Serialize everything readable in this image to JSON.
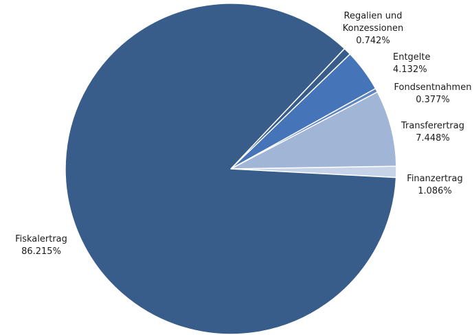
{
  "chart_data": {
    "type": "pie",
    "title": "",
    "slices": [
      {
        "label": "Fiskalertrag",
        "value_text": "86.215%",
        "value": 86.215,
        "color": "#385D8A"
      },
      {
        "label": "Regalien und Konzessionen",
        "label_lines": [
          "Regalien und",
          "Konzessionen"
        ],
        "value_text": "0.742%",
        "value": 0.742,
        "color": "#385D8A"
      },
      {
        "label": "Entgelte",
        "value_text": "4.132%",
        "value": 4.132,
        "color": "#4674B8"
      },
      {
        "label": "Fondsentnahmen",
        "value_text": "0.377%",
        "value": 0.377,
        "color": "#5F86C1"
      },
      {
        "label": "Transferertrag",
        "value_text": "7.448%",
        "value": 7.448,
        "color": "#A1B5D7"
      },
      {
        "label": "Finanzertrag",
        "value_text": "1.086%",
        "value": 1.086,
        "color": "#C6D3E8"
      }
    ],
    "legend": "none"
  }
}
